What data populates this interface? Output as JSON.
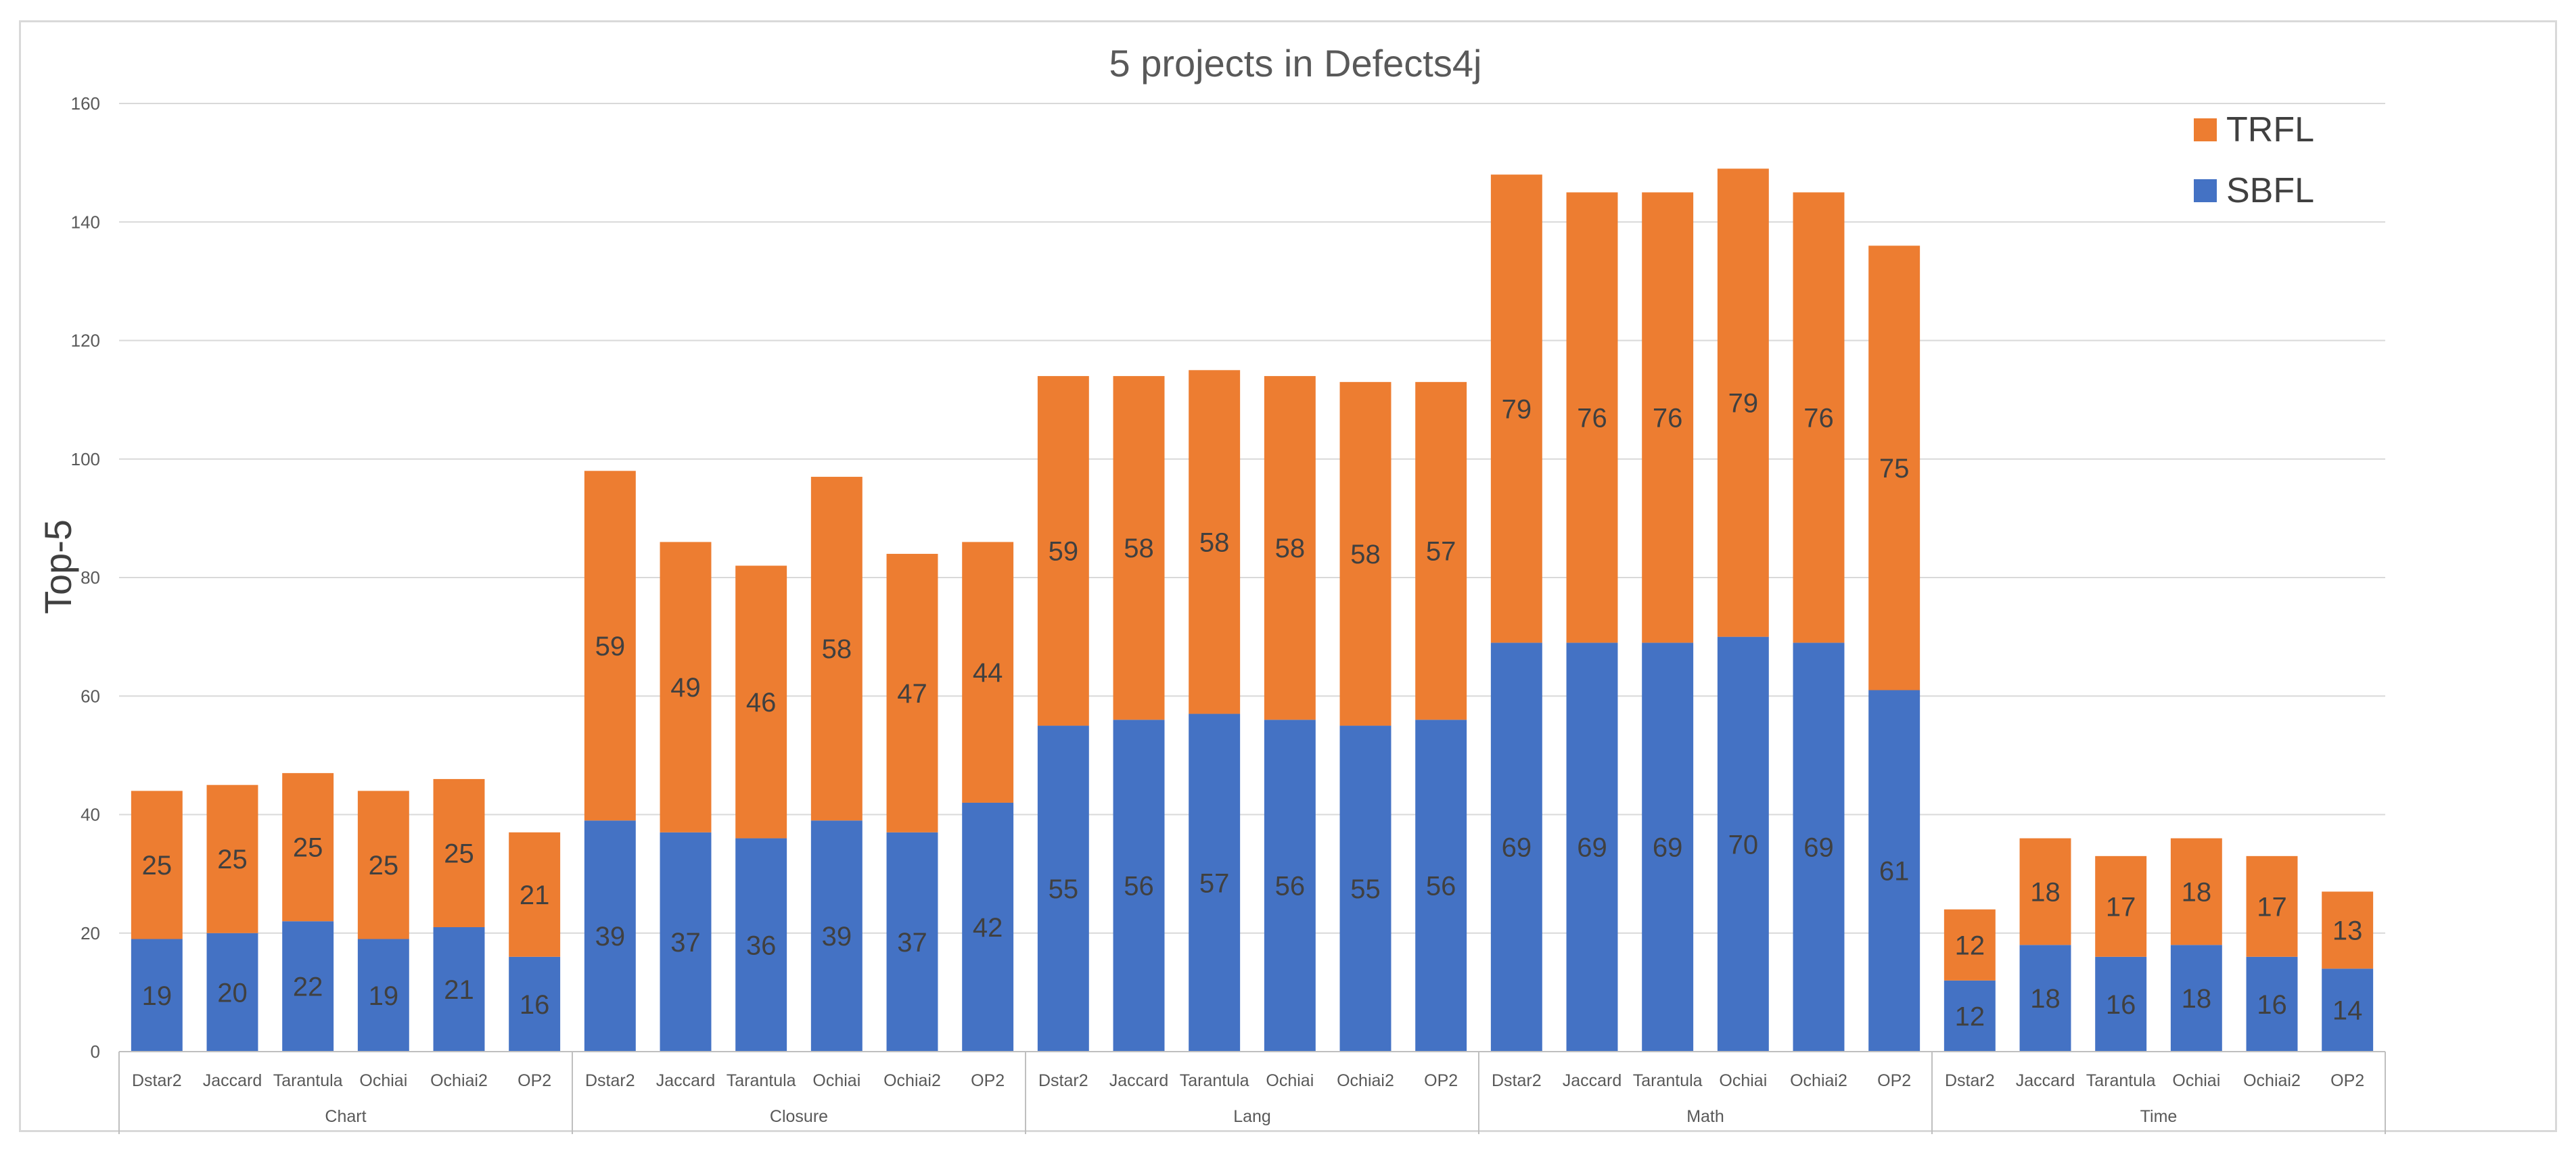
{
  "chart_data": {
    "type": "bar",
    "stacked": true,
    "title": "5 projects in Defects4j",
    "xlabel": "",
    "ylabel": "Top-5",
    "ylim": [
      0,
      160
    ],
    "yticks": [
      0,
      20,
      40,
      60,
      80,
      100,
      120,
      140,
      160
    ],
    "grid": true,
    "legend_position": "top-right",
    "groups": [
      {
        "name": "Chart",
        "categories": [
          "Dstar2",
          "Jaccard",
          "Tarantula",
          "Ochiai",
          "Ochiai2",
          "OP2"
        ]
      },
      {
        "name": "Closure",
        "categories": [
          "Dstar2",
          "Jaccard",
          "Tarantula",
          "Ochiai",
          "Ochiai2",
          "OP2"
        ]
      },
      {
        "name": "Lang",
        "categories": [
          "Dstar2",
          "Jaccard",
          "Tarantula",
          "Ochiai",
          "Ochiai2",
          "OP2"
        ]
      },
      {
        "name": "Math",
        "categories": [
          "Dstar2",
          "Jaccard",
          "Tarantula",
          "Ochiai",
          "Ochiai2",
          "OP2"
        ]
      },
      {
        "name": "Time",
        "categories": [
          "Dstar2",
          "Jaccard",
          "Tarantula",
          "Ochiai",
          "Ochiai2",
          "OP2"
        ]
      }
    ],
    "series": [
      {
        "name": "SBFL",
        "color": "#4472c4",
        "values": [
          19,
          20,
          22,
          19,
          21,
          16,
          39,
          37,
          36,
          39,
          37,
          42,
          55,
          56,
          57,
          56,
          55,
          56,
          69,
          69,
          69,
          70,
          69,
          61,
          12,
          18,
          16,
          18,
          16,
          14
        ]
      },
      {
        "name": "TRFL",
        "color": "#ed7d31",
        "values": [
          25,
          25,
          25,
          25,
          25,
          21,
          59,
          49,
          46,
          58,
          47,
          44,
          59,
          58,
          58,
          58,
          58,
          57,
          79,
          76,
          76,
          79,
          76,
          75,
          12,
          18,
          17,
          18,
          17,
          13
        ]
      }
    ],
    "legend_order": [
      "TRFL",
      "SBFL"
    ]
  },
  "colors": {
    "gridline": "#d9d9d9",
    "axis": "#bfbfbf",
    "text": "#595959"
  }
}
